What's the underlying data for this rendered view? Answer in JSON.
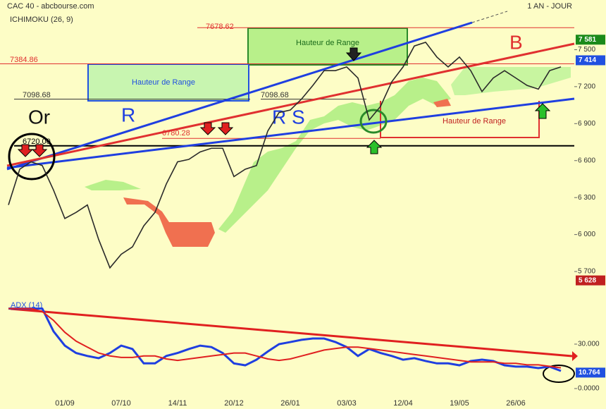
{
  "header": {
    "source": "CAC 40 - abcbourse.com",
    "period": "1 AN - JOUR"
  },
  "chart_data": [
    {
      "type": "line",
      "title": "ICHIMOKU (26, 9)",
      "categories": [
        null,
        null,
        null,
        null,
        null,
        "01/09",
        null,
        null,
        null,
        null,
        "07/10",
        null,
        null,
        null,
        null,
        "14/11",
        null,
        null,
        null,
        null,
        "20/12",
        null,
        null,
        null,
        null,
        "26/01",
        null,
        null,
        null,
        null,
        "03/03",
        null,
        null,
        null,
        null,
        "12/04",
        null,
        null,
        null,
        null,
        "19/05",
        null,
        null,
        null,
        null,
        "26/06",
        null,
        null,
        null,
        null
      ],
      "series": [
        {
          "color": "#2a2a2a",
          "values": [
            6240,
            6530,
            6590,
            6560,
            6360,
            6130,
            6180,
            6240,
            5960,
            5730,
            5840,
            5900,
            6070,
            6180,
            6410,
            6590,
            6610,
            6670,
            6700,
            6700,
            6470,
            6530,
            6560,
            6840,
            6990,
            7010,
            7100,
            7210,
            7330,
            7330,
            7360,
            7270,
            6930,
            7040,
            7240,
            7360,
            7530,
            7560,
            7440,
            7360,
            7440,
            7330,
            7160,
            7270,
            7330,
            7270,
            7210,
            7180,
            7330,
            7360
          ]
        }
      ],
      "ylim": [
        5500,
        7800
      ],
      "yticks": [
        {
          "value": 5700,
          "label": "5 700"
        },
        {
          "value": 6000,
          "label": "6 000"
        },
        {
          "value": 6300,
          "label": "6 300"
        },
        {
          "value": 6600,
          "label": "6 600"
        },
        {
          "value": 6900,
          "label": "6 900"
        },
        {
          "value": 7200,
          "label": "7 200"
        },
        {
          "value": 7500,
          "label": "7 500"
        }
      ],
      "levels": [
        {
          "value": 7678.62,
          "color": "#e03030"
        },
        {
          "value": 7384.86,
          "color": "#e03030"
        },
        {
          "value": 7098.68,
          "color": "#333333"
        },
        {
          "value": 7098.68,
          "color": "#333333"
        },
        {
          "value": 6780.28,
          "color": "#e03030"
        },
        {
          "value": 6720,
          "label": "6720.00",
          "color": "#000000"
        }
      ],
      "badges": [
        {
          "value": 7581,
          "label": "7 581",
          "color": "#1a8a1a"
        },
        {
          "value": 7414,
          "label": "7 414",
          "color": "#2050e0"
        },
        {
          "value": 5628,
          "label": "5 628",
          "color": "#c02020"
        }
      ],
      "annotations": [
        "Or",
        "R",
        "R S",
        "B",
        "Hauteur de Range",
        "Hauteur de Range",
        "Hauteur de Range"
      ]
    },
    {
      "type": "line",
      "title": "ADX (14)",
      "series": [
        {
          "color": "#1f3fe0",
          "values": [
            54,
            54,
            54,
            54,
            38.6,
            29,
            24,
            22,
            20.5,
            24,
            29,
            26.7,
            17,
            17,
            22,
            24,
            26.7,
            29,
            28,
            24,
            17,
            15.7,
            19.5,
            25,
            30,
            31.4,
            32.9,
            33.8,
            33.8,
            31.4,
            28,
            22,
            26.7,
            24,
            22,
            19.5,
            20.5,
            18.6,
            17,
            17,
            15.7,
            18.6,
            19.5,
            18.6,
            15.7,
            14.8,
            14.8,
            13.8,
            14.8,
            11.9
          ]
        },
        {
          "color": "#e02020",
          "values": [
            54,
            54,
            54,
            52,
            46,
            38,
            32,
            28,
            24,
            22,
            21,
            21,
            22,
            22,
            20,
            19,
            20,
            21,
            22,
            23,
            24,
            24,
            22,
            20,
            19,
            20,
            22,
            24,
            26,
            27,
            28,
            28,
            27,
            26,
            25,
            24,
            23,
            22,
            21,
            20,
            19,
            18,
            18,
            18,
            17,
            17,
            16,
            16,
            15,
            14
          ]
        }
      ],
      "ylim": [
        -6,
        60
      ],
      "yticks": [
        {
          "value": 0,
          "label": "0.0000"
        },
        {
          "value": 30,
          "label": "30.000"
        }
      ],
      "badges": [
        {
          "value": 10.764,
          "label": "10.764",
          "color": "#2050e0"
        }
      ]
    }
  ]
}
